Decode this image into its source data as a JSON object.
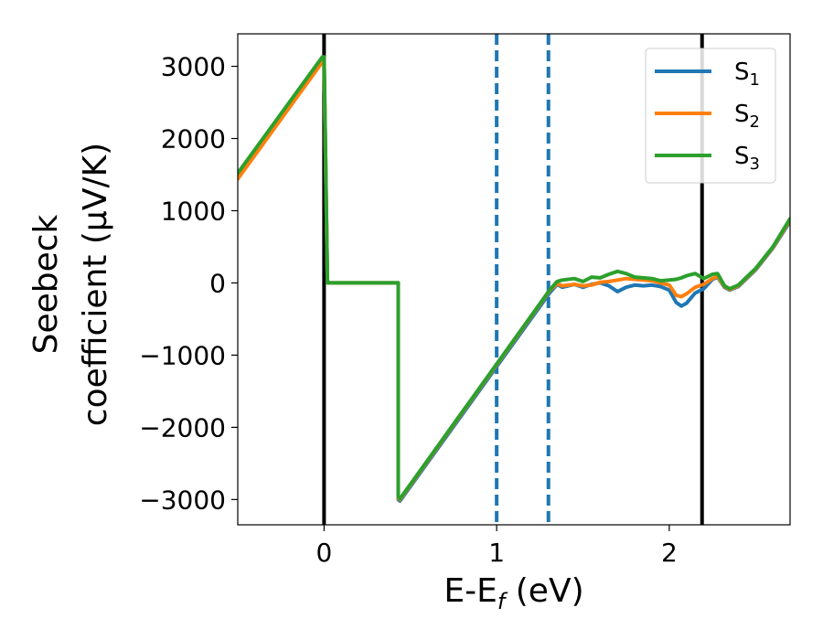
{
  "chart_data": {
    "type": "line",
    "xlabel": "E-E_f (eV)",
    "xlabel_main": "E-E",
    "xlabel_sub": "f",
    "xlabel_tail": " (eV)",
    "ylabel": "Seebeck coefficient (μV/K)",
    "ylabel_line1": "Seebeck",
    "ylabel_line2": "coefficient  (μV/K)",
    "xlim": [
      -0.5,
      2.7
    ],
    "ylim": [
      -3350,
      3450
    ],
    "x_ticks": [
      0,
      1,
      2
    ],
    "x_tick_labels": [
      "0",
      "1",
      "2"
    ],
    "y_ticks": [
      -3000,
      -2000,
      -1000,
      0,
      1000,
      2000,
      3000
    ],
    "y_tick_labels": [
      "−3000",
      "−2000",
      "−1000",
      "0",
      "1000",
      "2000",
      "3000"
    ],
    "grid": false,
    "legend_position": "top-right",
    "vertical_lines": [
      {
        "x": 0.0,
        "style": "solid",
        "color": "#000000"
      },
      {
        "x": 1.0,
        "style": "dashed",
        "color": "#1f77b4"
      },
      {
        "x": 1.3,
        "style": "dashed",
        "color": "#1f77b4"
      },
      {
        "x": 2.19,
        "style": "solid",
        "color": "#000000"
      }
    ],
    "series": [
      {
        "name": "S_1",
        "label_main": "S",
        "label_sub": "1",
        "color": "#1f77b4",
        "x": [
          -0.5,
          -0.01,
          0.0,
          0.02,
          0.43,
          0.43,
          0.44,
          1.31,
          1.35,
          1.38,
          1.45,
          1.5,
          1.55,
          1.6,
          1.65,
          1.7,
          1.75,
          1.8,
          1.85,
          1.9,
          1.95,
          2.0,
          2.04,
          2.07,
          2.1,
          2.15,
          2.2,
          2.25,
          2.28,
          2.32,
          2.35,
          2.4,
          2.5,
          2.6,
          2.7
        ],
        "y": [
          1480,
          3080,
          3080,
          0,
          0,
          -3000,
          -3020,
          -130,
          -20,
          -60,
          -20,
          -60,
          -20,
          0,
          -40,
          -120,
          -60,
          -30,
          -40,
          -30,
          -50,
          -100,
          -270,
          -320,
          -280,
          -140,
          -80,
          50,
          80,
          -60,
          -100,
          -50,
          180,
          480,
          850
        ]
      },
      {
        "name": "S_2",
        "label_main": "S",
        "label_sub": "2",
        "color": "#ff7f0e",
        "x": [
          -0.5,
          -0.01,
          0.0,
          0.02,
          0.43,
          0.43,
          0.44,
          1.31,
          1.35,
          1.38,
          1.45,
          1.5,
          1.55,
          1.6,
          1.65,
          1.7,
          1.75,
          1.8,
          1.85,
          1.9,
          1.95,
          2.0,
          2.04,
          2.07,
          2.1,
          2.15,
          2.2,
          2.25,
          2.28,
          2.32,
          2.35,
          2.4,
          2.5,
          2.6,
          2.7
        ],
        "y": [
          1440,
          3060,
          3060,
          0,
          0,
          -2980,
          -3000,
          -100,
          -10,
          -40,
          -20,
          -40,
          -30,
          10,
          20,
          40,
          60,
          50,
          40,
          30,
          0,
          -30,
          -170,
          -190,
          -150,
          -60,
          -20,
          60,
          90,
          -50,
          -90,
          -40,
          190,
          490,
          870
        ]
      },
      {
        "name": "S_3",
        "label_main": "S",
        "label_sub": "3",
        "color": "#2ca02c",
        "x": [
          -0.5,
          -0.01,
          0.0,
          0.02,
          0.43,
          0.43,
          0.44,
          1.31,
          1.35,
          1.38,
          1.45,
          1.5,
          1.55,
          1.6,
          1.65,
          1.7,
          1.75,
          1.8,
          1.85,
          1.9,
          1.95,
          2.0,
          2.04,
          2.07,
          2.1,
          2.15,
          2.2,
          2.25,
          2.28,
          2.32,
          2.35,
          2.4,
          2.5,
          2.6,
          2.7
        ],
        "y": [
          1520,
          3130,
          3130,
          0,
          0,
          -2960,
          -2990,
          -90,
          20,
          40,
          60,
          20,
          80,
          70,
          120,
          160,
          130,
          80,
          70,
          60,
          30,
          40,
          50,
          70,
          100,
          130,
          60,
          120,
          130,
          -40,
          -80,
          -30,
          200,
          500,
          890
        ]
      }
    ]
  }
}
